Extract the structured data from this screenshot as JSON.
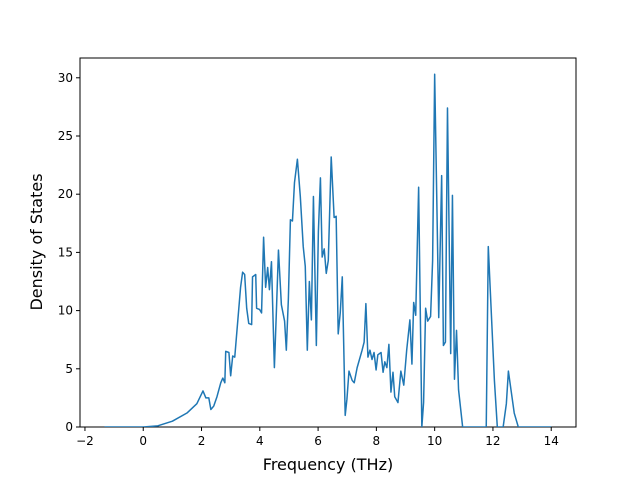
{
  "chart_data": {
    "type": "line",
    "x_label": "Frequency (THz)",
    "y_label": "Density of States",
    "xlim": [
      -2.17,
      14.85
    ],
    "ylim": [
      0,
      31.7
    ],
    "xticks": [
      {
        "value": -2,
        "label": "−2"
      },
      0,
      2,
      4,
      6,
      8,
      10,
      12,
      14
    ],
    "yticks": [
      0,
      5,
      10,
      15,
      20,
      25,
      30
    ],
    "series": [
      {
        "color": "#1f77b4",
        "x": [
          -1.33,
          0,
          0.5,
          1.0,
          1.5,
          1.84,
          2.05,
          2.15,
          2.25,
          2.32,
          2.42,
          2.53,
          2.66,
          2.73,
          2.8,
          2.83,
          2.94,
          3.0,
          3.07,
          3.14,
          3.24,
          3.34,
          3.41,
          3.48,
          3.55,
          3.62,
          3.72,
          3.75,
          3.86,
          3.89,
          3.99,
          4.06,
          4.13,
          4.2,
          4.27,
          4.33,
          4.4,
          4.5,
          4.57,
          4.64,
          4.74,
          4.85,
          4.91,
          4.98,
          5.05,
          5.12,
          5.19,
          5.29,
          5.39,
          5.49,
          5.56,
          5.63,
          5.7,
          5.77,
          5.84,
          5.94,
          6.01,
          6.08,
          6.14,
          6.21,
          6.28,
          6.35,
          6.45,
          6.55,
          6.62,
          6.69,
          6.76,
          6.83,
          6.93,
          6.99,
          7.06,
          7.17,
          7.24,
          7.34,
          7.51,
          7.58,
          7.64,
          7.71,
          7.78,
          7.85,
          7.92,
          7.99,
          8.05,
          8.16,
          8.23,
          8.29,
          8.36,
          8.43,
          8.5,
          8.57,
          8.63,
          8.74,
          8.84,
          8.94,
          9.04,
          9.15,
          9.22,
          9.28,
          9.35,
          9.45,
          9.56,
          9.62,
          9.69,
          9.76,
          9.86,
          9.93,
          10.0,
          10.07,
          10.14,
          10.24,
          10.3,
          10.37,
          10.44,
          10.55,
          10.61,
          10.68,
          10.75,
          10.82,
          10.96,
          11.77,
          11.84,
          12.05,
          12.15,
          12.35,
          12.46,
          12.53,
          12.63,
          12.73,
          12.87,
          14.0
        ],
        "values": [
          0,
          0,
          0.1,
          0.5,
          1.2,
          2,
          3.1,
          2.5,
          2.5,
          1.5,
          1.8,
          2.6,
          3.8,
          4.2,
          3.8,
          6.5,
          6.4,
          4.4,
          6.1,
          6,
          9,
          12,
          13.3,
          13.1,
          10.2,
          8.9,
          8.8,
          12.9,
          13.1,
          10.2,
          10.1,
          9.8,
          16.3,
          12,
          13.7,
          11.8,
          14.2,
          5.1,
          10,
          15.2,
          10.5,
          9.1,
          6.6,
          11,
          17.8,
          17.7,
          21,
          23,
          19.8,
          15.5,
          13.8,
          6.6,
          12.5,
          9.2,
          19.8,
          7,
          16.8,
          21.4,
          14.6,
          15.3,
          13.2,
          14.3,
          23.2,
          18,
          18.1,
          8,
          9.8,
          12.9,
          1,
          2.4,
          4.8,
          4,
          3.8,
          5.1,
          6.6,
          7.3,
          10.6,
          6,
          6.6,
          5.8,
          6.4,
          4.9,
          6.2,
          6.4,
          4.7,
          5.6,
          5.1,
          7.1,
          3,
          4.7,
          2.6,
          2.1,
          4.8,
          3.6,
          6.6,
          9.2,
          5.4,
          10.7,
          9.6,
          20.6,
          0,
          2.1,
          10.2,
          9.1,
          9.5,
          14.3,
          30.3,
          20,
          9.4,
          21.6,
          7,
          7.3,
          27.4,
          6.3,
          19.9,
          4.1,
          8.3,
          3.2,
          0,
          0,
          15.5,
          4,
          0,
          0,
          2,
          4.8,
          3,
          1.2,
          0,
          0
        ]
      }
    ]
  }
}
